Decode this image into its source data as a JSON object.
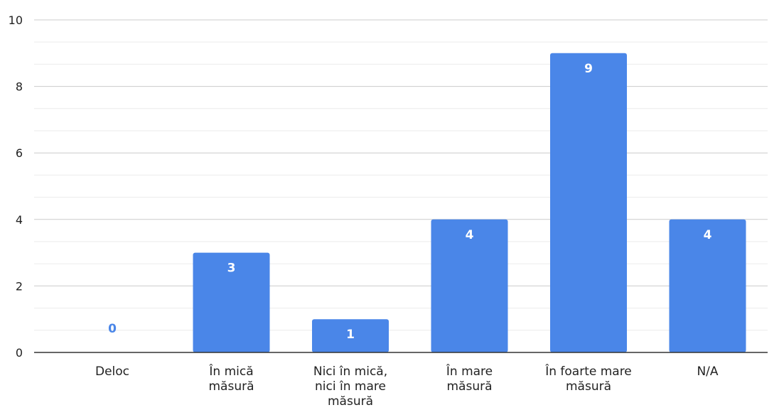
{
  "chart_data": {
    "type": "bar",
    "categories": [
      [
        "Deloc"
      ],
      [
        "În mică",
        "măsură"
      ],
      [
        "Nici în mică,",
        "nici în mare",
        "măsură"
      ],
      [
        "În mare",
        "măsură"
      ],
      [
        "În foarte mare",
        "măsură"
      ],
      [
        "N/A"
      ]
    ],
    "values": [
      0,
      3,
      1,
      4,
      9,
      4
    ],
    "ylim": [
      0,
      10
    ],
    "y_ticks": [
      0,
      2,
      4,
      6,
      8,
      10
    ],
    "minor_grid_step": 0.6667,
    "grid": true,
    "legend": "none",
    "title": "",
    "xlabel": "",
    "ylabel": "",
    "colors": {
      "bar": "#4a86e8",
      "bar_label": "#ffffff",
      "zero_label": "#4a86e8",
      "major_grid": "#cccccc",
      "minor_grid": "#ebebeb",
      "axis": "#333333"
    }
  }
}
